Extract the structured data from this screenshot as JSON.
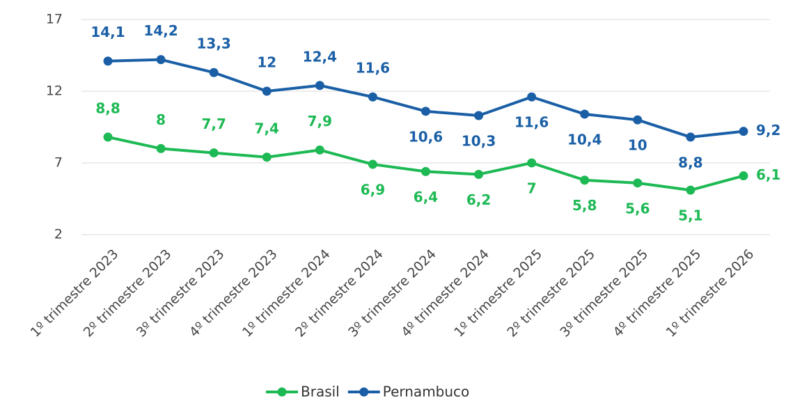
{
  "chart_data": {
    "type": "line",
    "categories": [
      "1º trimestre 2023",
      "2º trimestre 2023",
      "3º trimestre 2023",
      "4º trimestre 2023",
      "1º trimestre 2024",
      "2º trimestre 2024",
      "3º trimestre 2024",
      "4º trimestre 2024",
      "1º trimestre 2025",
      "2º trimestre 2025",
      "3º trimestre 2025",
      "4º trimestre 2025",
      "1º trimestre 2026"
    ],
    "series": [
      {
        "name": "Brasil",
        "color": "#1db954",
        "values": [
          8.8,
          8,
          7.7,
          7.4,
          7.9,
          6.9,
          6.4,
          6.2,
          7,
          5.8,
          5.6,
          5.1,
          6.1
        ],
        "value_labels": [
          "8,8",
          "8",
          "7,7",
          "7,4",
          "7,9",
          "6,9",
          "6,4",
          "6,2",
          "7",
          "5,8",
          "5,6",
          "5,1",
          "6,1"
        ]
      },
      {
        "name": "Pernambuco",
        "color": "#1a5fa6",
        "values": [
          14.1,
          14.2,
          13.3,
          12,
          12.4,
          11.6,
          10.6,
          10.3,
          11.6,
          10.4,
          10,
          8.8,
          9.2
        ],
        "value_labels": [
          "14,1",
          "14,2",
          "13,3",
          "12",
          "12,4",
          "11,6",
          "10,6",
          "10,3",
          "11,6",
          "10,4",
          "10",
          "8,8",
          "9,2"
        ]
      }
    ],
    "ylim": [
      2,
      17
    ],
    "yticks": [
      2,
      7,
      12,
      17
    ],
    "grid": true,
    "legend": "bottom"
  }
}
